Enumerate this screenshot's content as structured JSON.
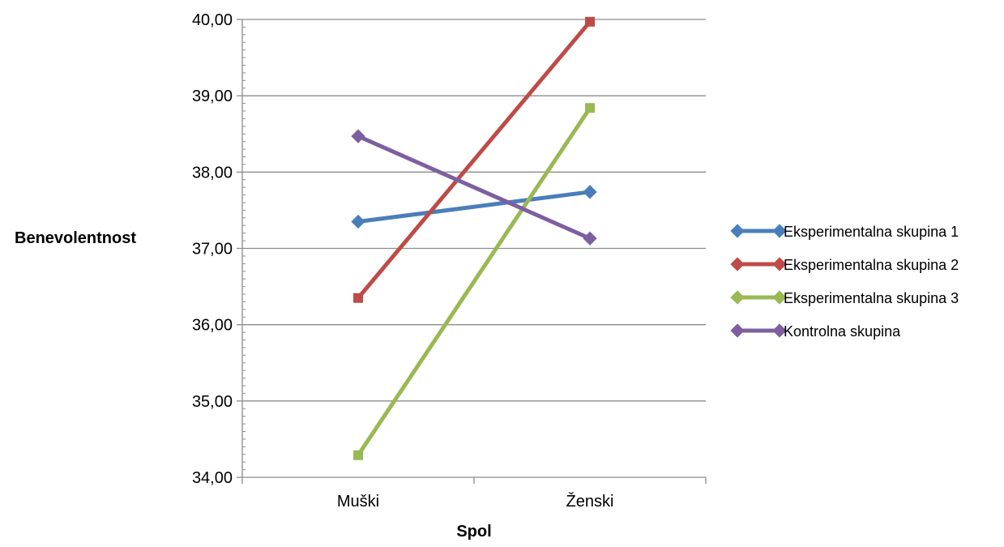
{
  "chart_data": {
    "type": "line",
    "title": "",
    "xlabel": "Spol",
    "ylabel": "Benevolentnost",
    "categories": [
      "Muški",
      "Ženski"
    ],
    "ylim": [
      34,
      40
    ],
    "yticks": [
      34,
      35,
      36,
      37,
      38,
      39,
      40
    ],
    "ytick_labels": [
      "34,00",
      "35,00",
      "36,00",
      "37,00",
      "38,00",
      "39,00",
      "40,00"
    ],
    "grid": true,
    "legend_position": "right",
    "series": [
      {
        "name": "Eksperimentalna skupina 1",
        "values": [
          37.35,
          37.74
        ],
        "color": "#4a7ebb",
        "marker": "diamond"
      },
      {
        "name": "Eksperimentalna skupina 2",
        "values": [
          36.35,
          39.97
        ],
        "color": "#be4b48",
        "marker": "square"
      },
      {
        "name": "Eksperimentalna skupina 3",
        "values": [
          34.29,
          38.84
        ],
        "color": "#98b954",
        "marker": "square"
      },
      {
        "name": "Kontrolna skupina",
        "values": [
          38.47,
          37.13
        ],
        "color": "#7d5fa0",
        "marker": "diamond"
      }
    ]
  }
}
